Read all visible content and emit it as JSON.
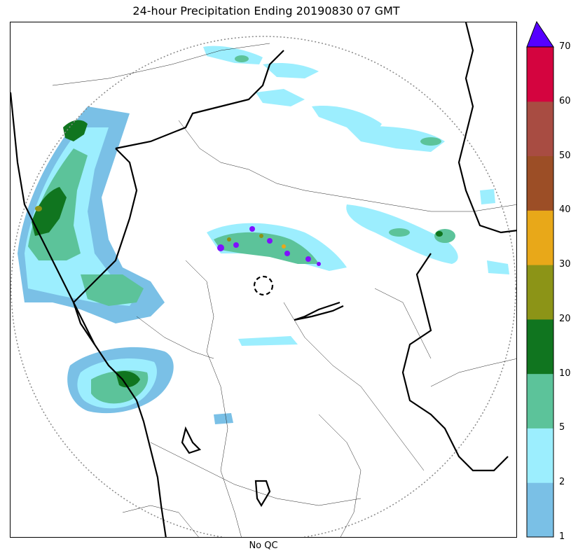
{
  "title": "24-hour Precipitation Ending 20190830 07 GMT",
  "xlabel": "No QC",
  "colorbar": {
    "ticks": [
      "1",
      "2",
      "5",
      "10",
      "20",
      "30",
      "40",
      "50",
      "60",
      "70"
    ],
    "colors": [
      "#7ac0e6",
      "#9ceefe",
      "#5cc39a",
      "#10751f",
      "#8c9417",
      "#e8a819",
      "#9c4e26",
      "#a84c42",
      "#d4043f"
    ],
    "extend_color": "#5500ff"
  },
  "map_colors": {
    "light_blue": "#7ac0e6",
    "cyan": "#9ceefe",
    "mint": "#5cc39a",
    "green": "#10751f",
    "olive": "#8c9417",
    "purple": "#8010ff"
  }
}
